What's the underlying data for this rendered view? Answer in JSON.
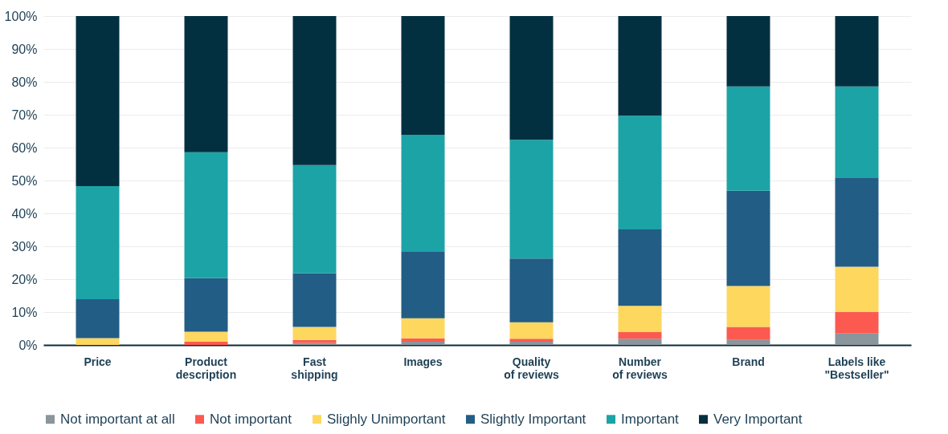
{
  "chart_data": {
    "type": "bar",
    "stacked": true,
    "legend": "bottom",
    "grid": "y",
    "categories": [
      "Price",
      "Product\ndescription",
      "Fast\nshipping",
      "Images",
      "Quality\nof reviews",
      "Number\nof reviews",
      "Brand",
      "Labels like\n\"Bestseller\""
    ],
    "ylim": [
      0,
      100
    ],
    "yticks": [
      {
        "value": 0,
        "label": "0%"
      },
      {
        "value": 10,
        "label": "10%"
      },
      {
        "value": 20,
        "label": "20%"
      },
      {
        "value": 30,
        "label": "30%"
      },
      {
        "value": 40,
        "label": "40%"
      },
      {
        "value": 50,
        "label": "50%"
      },
      {
        "value": 60,
        "label": "60%"
      },
      {
        "value": 70,
        "label": "70%"
      },
      {
        "value": 80,
        "label": "80%"
      },
      {
        "value": 90,
        "label": "90%"
      },
      {
        "value": 100,
        "label": "100%"
      }
    ],
    "series": [
      {
        "name": "Not important at all",
        "color": "#8a959c",
        "values": [
          0,
          0,
          0.6,
          1.0,
          1.0,
          1.9,
          1.5,
          3.5
        ]
      },
      {
        "name": "Not important",
        "color": "#fc5a50",
        "values": [
          0,
          1.0,
          0.9,
          1.0,
          0.9,
          2.0,
          4.0,
          6.5
        ]
      },
      {
        "name": "Slighly Unimportant",
        "color": "#fed75f",
        "values": [
          2.1,
          3.0,
          4.0,
          6.1,
          5.0,
          8.0,
          12.4,
          13.8
        ]
      },
      {
        "name": "Slightly Important",
        "color": "#225d85",
        "values": [
          11.8,
          16.3,
          16.3,
          20.4,
          19.4,
          23.2,
          29.0,
          27.1
        ]
      },
      {
        "name": "Important",
        "color": "#1ca3a6",
        "values": [
          34.4,
          38.3,
          32.9,
          35.4,
          36.1,
          34.6,
          31.7,
          27.7
        ]
      },
      {
        "name": "Very Important",
        "color": "#023041",
        "values": [
          51.7,
          41.4,
          45.3,
          36.1,
          37.6,
          30.3,
          21.4,
          21.4
        ]
      }
    ]
  }
}
